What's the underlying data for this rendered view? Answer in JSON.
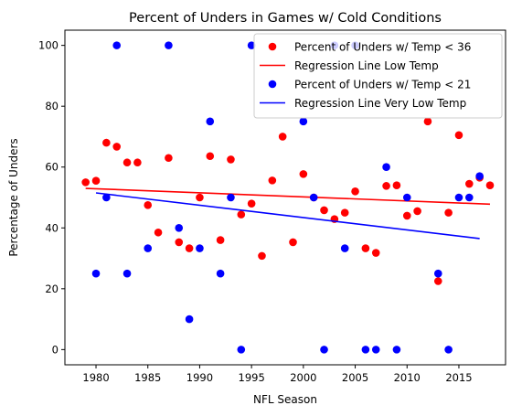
{
  "chart_data": {
    "type": "scatter",
    "title": "Percent of Unders in Games w/ Cold Conditions",
    "xlabel": "NFL Season",
    "ylabel": "Percentage of Unders",
    "xlim": [
      1977,
      2019.5
    ],
    "ylim": [
      -5,
      105
    ],
    "xticks": [
      1980,
      1985,
      1990,
      1995,
      2000,
      2005,
      2010,
      2015
    ],
    "yticks": [
      0,
      20,
      40,
      60,
      80,
      100
    ],
    "grid": false,
    "legend_position": "top-right",
    "series": [
      {
        "name": "Percent of Unders w/ Temp < 36",
        "kind": "scatter",
        "color": "#ff0000",
        "points": [
          [
            1979,
            55
          ],
          [
            1980,
            55.5
          ],
          [
            1981,
            68
          ],
          [
            1982,
            66.7
          ],
          [
            1983,
            61.5
          ],
          [
            1984,
            61.5
          ],
          [
            1985,
            47.5
          ],
          [
            1986,
            38.5
          ],
          [
            1987,
            63
          ],
          [
            1988,
            35.3
          ],
          [
            1989,
            33.3
          ],
          [
            1990,
            50
          ],
          [
            1991,
            63.6
          ],
          [
            1992,
            36
          ],
          [
            1993,
            62.5
          ],
          [
            1994,
            44.4
          ],
          [
            1995,
            48
          ],
          [
            1996,
            30.8
          ],
          [
            1997,
            55.6
          ],
          [
            1998,
            70
          ],
          [
            1999,
            35.3
          ],
          [
            2000,
            57.7
          ],
          [
            2001,
            50
          ],
          [
            2002,
            45.8
          ],
          [
            2003,
            42.9
          ],
          [
            2004,
            45
          ],
          [
            2005,
            52
          ],
          [
            2006,
            33.3
          ],
          [
            2007,
            31.8
          ],
          [
            2008,
            53.8
          ],
          [
            2009,
            54
          ],
          [
            2010,
            44
          ],
          [
            2011,
            45.5
          ],
          [
            2012,
            75
          ],
          [
            2013,
            22.5
          ],
          [
            2014,
            45
          ],
          [
            2015,
            70.5
          ],
          [
            2016,
            54.5
          ],
          [
            2017,
            56.5
          ],
          [
            2018,
            54
          ]
        ]
      },
      {
        "name": "Regression Line Low Temp",
        "kind": "line",
        "color": "#ff0000",
        "points": [
          [
            1979,
            53
          ],
          [
            2018,
            47.8
          ]
        ]
      },
      {
        "name": "Percent of Unders w/ Temp < 21",
        "kind": "scatter",
        "color": "#0000ff",
        "points": [
          [
            1980,
            25
          ],
          [
            1981,
            50
          ],
          [
            1982,
            100
          ],
          [
            1983,
            25
          ],
          [
            1985,
            33.3
          ],
          [
            1987,
            100
          ],
          [
            1988,
            40
          ],
          [
            1989,
            10
          ],
          [
            1990,
            33.3
          ],
          [
            1991,
            75
          ],
          [
            1992,
            25
          ],
          [
            1993,
            50
          ],
          [
            1994,
            0
          ],
          [
            1995,
            100
          ],
          [
            2000,
            75
          ],
          [
            2001,
            50
          ],
          [
            2002,
            0
          ],
          [
            2003,
            100
          ],
          [
            2004,
            33.3
          ],
          [
            2005,
            100
          ],
          [
            2006,
            0
          ],
          [
            2007,
            0
          ],
          [
            2008,
            60
          ],
          [
            2009,
            0
          ],
          [
            2010,
            50
          ],
          [
            2013,
            25
          ],
          [
            2014,
            0
          ],
          [
            2015,
            50
          ],
          [
            2016,
            50
          ],
          [
            2017,
            57
          ]
        ]
      },
      {
        "name": "Regression Line Very Low Temp",
        "kind": "line",
        "color": "#0000ff",
        "points": [
          [
            1980,
            51.5
          ],
          [
            2017,
            36.5
          ]
        ]
      }
    ]
  }
}
